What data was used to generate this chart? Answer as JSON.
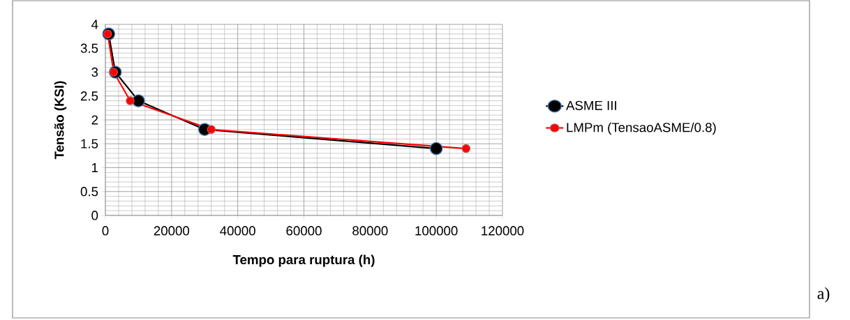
{
  "chart_data": {
    "type": "line",
    "xlabel": "Tempo para ruptura (h)",
    "ylabel": "Tensão (KSI)",
    "series": [
      {
        "name": "ASME III",
        "color": "#000000",
        "x": [
          1000,
          3000,
          10000,
          30000,
          100000
        ],
        "values": [
          3.8,
          3,
          2.4,
          1.8,
          1.4
        ]
      },
      {
        "name": "LMPm (TensaoASME/0.8)",
        "color": "#ff0000",
        "x": [
          700,
          2500,
          7500,
          32000,
          109000
        ],
        "values": [
          3.8,
          3,
          2.4,
          1.8,
          1.4
        ]
      }
    ],
    "xlim": [
      0,
      120000
    ],
    "xticks": [
      0,
      20000,
      40000,
      60000,
      80000,
      100000,
      120000
    ],
    "ylim": [
      0,
      4
    ],
    "yticks": [
      0,
      0.5,
      1,
      1.5,
      2,
      2.5,
      3,
      3.5,
      4
    ],
    "grid": true,
    "legend": "right",
    "marker": "circle",
    "line_style": "solid",
    "annotations": [
      "a)"
    ]
  }
}
